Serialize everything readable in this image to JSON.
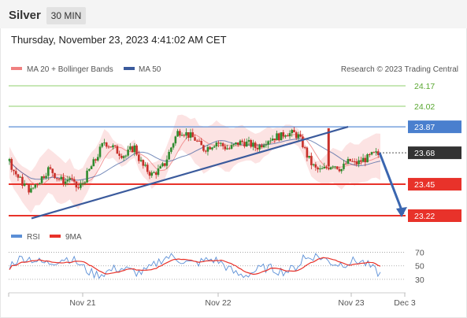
{
  "header": {
    "symbol": "Silver",
    "timeframe": "30 MIN"
  },
  "timestamp": "Thursday, November 23, 2023 4:41:02 AM CET",
  "legend": {
    "ma20": "MA 20 + Bollinger Bands",
    "ma50": "MA 50",
    "rsi": "RSI",
    "ma9": "9MA"
  },
  "credit": "Research © 2023 Trading Central",
  "colors": {
    "ma20": "#f08080",
    "ma50": "#3a5a9c",
    "green": "#8fcf6e",
    "red": "#e8322a",
    "blue": "#5b8fd6",
    "band": "#fbdede",
    "candle_up": "#2e8b2e",
    "candle_dn": "#c8302a"
  },
  "chart_data": [
    {
      "type": "candlestick",
      "x_ticks": [
        "Nov 21",
        "Nov 22",
        "Nov 23",
        "Dec 3"
      ],
      "ylim": [
        23.15,
        24.25
      ],
      "levels": [
        {
          "value": 24.17,
          "label": "24.17",
          "kind": "resistance-green"
        },
        {
          "value": 24.02,
          "label": "24.02",
          "kind": "resistance-green"
        },
        {
          "value": 23.87,
          "label": "23.87",
          "kind": "pivot-blue"
        },
        {
          "value": 23.68,
          "label": "23.68",
          "kind": "last-price"
        },
        {
          "value": 23.45,
          "label": "23.45",
          "kind": "support-red"
        },
        {
          "value": 23.22,
          "label": "23.22",
          "kind": "support-red"
        }
      ],
      "close_path": [
        23.62,
        23.55,
        23.5,
        23.46,
        23.43,
        23.4,
        23.45,
        23.48,
        23.52,
        23.56,
        23.54,
        23.5,
        23.48,
        23.47,
        23.5,
        23.44,
        23.42,
        23.46,
        23.52,
        23.58,
        23.63,
        23.7,
        23.76,
        23.74,
        23.72,
        23.69,
        23.67,
        23.66,
        23.7,
        23.72,
        23.64,
        23.58,
        23.55,
        23.52,
        23.54,
        23.56,
        23.6,
        23.68,
        23.76,
        23.83,
        23.84,
        23.82,
        23.8,
        23.78,
        23.74,
        23.71,
        23.72,
        23.74,
        23.76,
        23.74,
        23.72,
        23.71,
        23.73,
        23.75,
        23.76,
        23.75,
        23.74,
        23.72,
        23.73,
        23.76,
        23.78,
        23.79,
        23.8,
        23.8,
        23.83,
        23.82,
        23.82,
        23.8,
        23.74,
        23.66,
        23.6,
        23.56,
        23.55,
        23.56,
        23.58,
        23.6,
        23.58,
        23.56,
        23.6,
        23.62,
        23.6,
        23.61,
        23.63,
        23.64,
        23.66,
        23.67,
        23.66
      ],
      "spike_high": 23.86,
      "trendline": {
        "from": 23.2,
        "to": 23.87
      },
      "forecast_arrow": {
        "from": 23.68,
        "to": 23.22
      }
    },
    {
      "type": "line",
      "name": "RSI",
      "ticks": [
        70,
        50,
        30
      ],
      "ylim": [
        10,
        80
      ]
    }
  ]
}
